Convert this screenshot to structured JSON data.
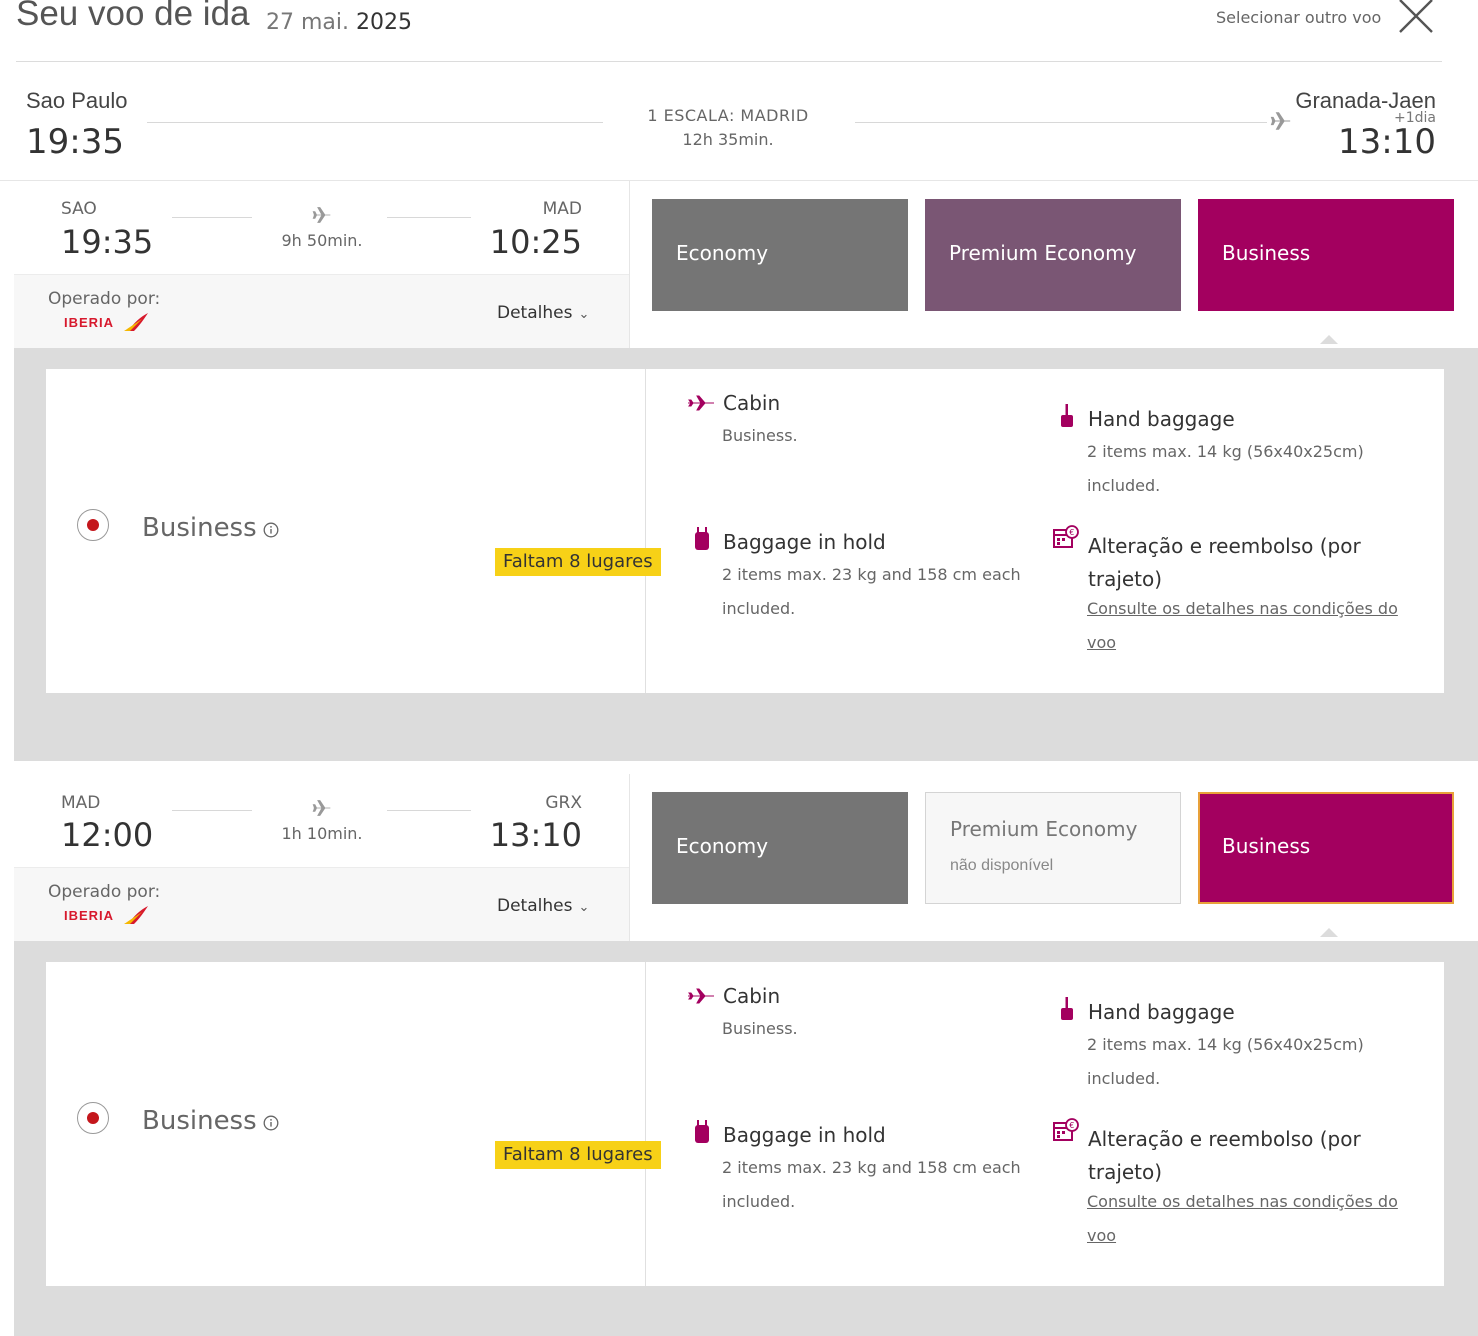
{
  "header": {
    "title": "Seu voo de ida",
    "date_day_month": "27 mai.",
    "date_year": "2025",
    "select_other": "Selecionar outro voo"
  },
  "route": {
    "origin_city": "Sao Paulo",
    "origin_time": "19:35",
    "stops": "1 ESCALA: MADRID",
    "duration": "12h 35min.",
    "dest_city": "Granada-Jaen",
    "plus_day": "+1dia",
    "dest_time": "13:10"
  },
  "segments": [
    {
      "from_code": "SAO",
      "from_time": "19:35",
      "duration": "9h 50min.",
      "to_code": "MAD",
      "to_time": "10:25",
      "operated_by": "Operado por:",
      "airline": "IBERIA",
      "details": "Detalhes",
      "classes": {
        "economy": "Economy",
        "premium": "Premium Economy",
        "premium_sub": "",
        "business": "Business"
      },
      "fare": {
        "name": "Business",
        "seats": "Faltam 8 lugares",
        "cabin_title": "Cabin",
        "cabin_text": "Business.",
        "hand_title": "Hand baggage",
        "hand_text_1": "2 items max. 14 kg (56x40x25cm)",
        "hand_text_2": "included.",
        "hold_title": "Baggage in hold",
        "hold_text_1": "2 items max. 23 kg and 158 cm each",
        "hold_text_2": "included.",
        "change_title_1": "Alteração e reembolso (por",
        "change_title_2": "trajeto)",
        "change_link_1": "Consulte os detalhes nas condições do",
        "change_link_2": "voo"
      }
    },
    {
      "from_code": "MAD",
      "from_time": "12:00",
      "duration": "1h 10min.",
      "to_code": "GRX",
      "to_time": "13:10",
      "operated_by": "Operado por:",
      "airline": "IBERIA",
      "details": "Detalhes",
      "classes": {
        "economy": "Economy",
        "premium": "Premium Economy",
        "premium_sub": "não disponível",
        "business": "Business"
      },
      "fare": {
        "name": "Business",
        "seats": "Faltam 8 lugares",
        "cabin_title": "Cabin",
        "cabin_text": "Business.",
        "hand_title": "Hand baggage",
        "hand_text_1": "2 items max. 14 kg (56x40x25cm)",
        "hand_text_2": "included.",
        "hold_title": "Baggage in hold",
        "hold_text_1": "2 items max. 23 kg and 158 cm each",
        "hold_text_2": "included.",
        "change_title_1": "Alteração e reembolso (por",
        "change_title_2": "trajeto)",
        "change_link_1": "Consulte os detalhes nas condições do",
        "change_link_2": "voo"
      }
    }
  ],
  "colors": {
    "economy": "#757575",
    "premium": "#7a5674",
    "business": "#a3005f",
    "seats_badge": "#f7d117",
    "radio_dot": "#c4161c"
  },
  "icons": [
    "close-icon",
    "plane-icon",
    "cabin-plane-icon",
    "hand-baggage-icon",
    "hold-baggage-icon",
    "calendar-refund-icon",
    "info-icon",
    "chevron-down-icon",
    "iberia-logo"
  ]
}
